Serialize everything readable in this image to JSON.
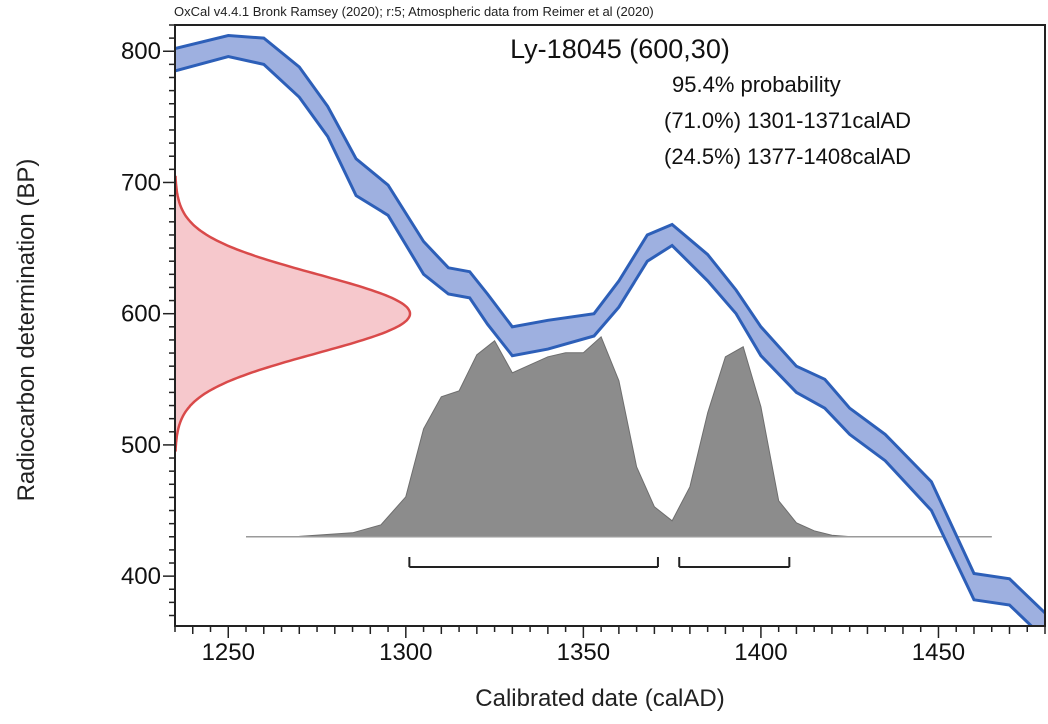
{
  "chart_data": {
    "type": "area",
    "header": "OxCal v4.4.1 Bronk Ramsey (2020); r:5; Atmospheric data from Reimer et al (2020)",
    "sample": {
      "name": "Ly-18045 (600,30)",
      "confidence": "95.4% probability",
      "ranges": [
        {
          "label": "(71.0%) 1301-1371calAD",
          "from": 1301,
          "to": 1371
        },
        {
          "label": "(24.5%) 1377-1408calAD",
          "from": 1377,
          "to": 1408
        }
      ]
    },
    "xlabel": "Calibrated date (calAD)",
    "ylabel": "Radiocarbon determination (BP)",
    "xlim": [
      1235,
      1480
    ],
    "ylim": [
      362,
      820
    ],
    "xticks": [
      1250,
      1300,
      1350,
      1400,
      1450
    ],
    "yticks": [
      400,
      500,
      600,
      700,
      800
    ],
    "calibration_curve": {
      "x": [
        1235,
        1250,
        1260,
        1270,
        1278,
        1286,
        1295,
        1305,
        1312,
        1318,
        1323,
        1330,
        1340,
        1353,
        1360,
        1368,
        1375,
        1385,
        1393,
        1400,
        1410,
        1418,
        1425,
        1435,
        1448,
        1460,
        1470,
        1480
      ],
      "upper": [
        802,
        812,
        810,
        788,
        758,
        718,
        698,
        655,
        635,
        632,
        615,
        590,
        595,
        600,
        625,
        660,
        668,
        645,
        618,
        590,
        560,
        550,
        528,
        508,
        472,
        402,
        398,
        372
      ],
      "lower": [
        785,
        796,
        790,
        765,
        735,
        690,
        675,
        630,
        615,
        612,
        592,
        568,
        573,
        583,
        605,
        640,
        652,
        625,
        600,
        568,
        540,
        528,
        508,
        488,
        450,
        382,
        378,
        352
      ],
      "color": "#5a78c8"
    },
    "radiocarbon_distribution": {
      "mean": 600,
      "sd": 30,
      "color": "#d94a4a"
    },
    "calibrated_distribution": {
      "x": [
        1255,
        1270,
        1285,
        1293,
        1300,
        1305,
        1310,
        1315,
        1320,
        1325,
        1330,
        1335,
        1340,
        1345,
        1350,
        1355,
        1360,
        1365,
        1370,
        1375,
        1380,
        1385,
        1390,
        1395,
        1400,
        1405,
        1410,
        1415,
        1420,
        1425,
        1440,
        1465
      ],
      "density": [
        0,
        0.002,
        0.02,
        0.06,
        0.2,
        0.54,
        0.7,
        0.73,
        0.91,
        0.98,
        0.82,
        0.86,
        0.9,
        0.92,
        0.92,
        1.0,
        0.78,
        0.35,
        0.15,
        0.08,
        0.25,
        0.62,
        0.9,
        0.95,
        0.65,
        0.18,
        0.07,
        0.03,
        0.008,
        0.001,
        0,
        0
      ],
      "color": "#8c8c8c"
    }
  }
}
